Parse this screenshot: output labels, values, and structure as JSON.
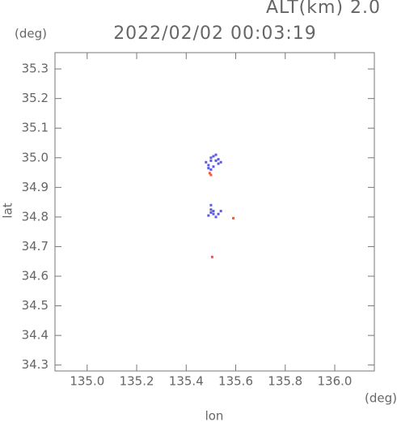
{
  "chart_data": {
    "type": "scatter",
    "title": "2022/02/02 00:03:19",
    "annotation": "ALT(km) 2.0",
    "y_unit": "(deg)",
    "x_unit": "(deg)",
    "xlabel": "lon",
    "ylabel": "lat",
    "xlim": [
      134.87,
      136.16
    ],
    "ylim": [
      34.28,
      35.355
    ],
    "xticks": [
      {
        "value": 135,
        "label": "135.0"
      },
      135.2,
      135.4,
      135.6,
      135.8,
      {
        "value": 136,
        "label": "136.0"
      }
    ],
    "yticks": [
      34.3,
      34.4,
      34.5,
      34.6,
      34.7,
      34.8,
      34.9,
      {
        "value": 35,
        "label": "35.0"
      },
      35.1,
      35.2,
      35.3
    ],
    "series": [
      {
        "color": "#5a5af0",
        "x": [
          135.48,
          135.49,
          135.5,
          135.51,
          135.5,
          135.52,
          135.53,
          135.54,
          135.51,
          135.49,
          135.5,
          135.52,
          135.53,
          135.5,
          135.49,
          135.51,
          135.5,
          135.52,
          135.53,
          135.54,
          135.5,
          135.51
        ],
        "y": [
          34.985,
          34.975,
          34.99,
          35.005,
          34.96,
          35.01,
          34.995,
          34.985,
          34.97,
          34.965,
          35.0,
          34.99,
          34.98,
          34.815,
          34.805,
          34.82,
          34.84,
          34.8,
          34.81,
          34.82,
          34.825,
          34.81
        ]
      },
      {
        "color": "#f05a3c",
        "x": [
          135.495,
          135.5,
          135.59,
          135.505
        ],
        "y": [
          34.948,
          34.942,
          34.796,
          34.665
        ]
      }
    ]
  }
}
